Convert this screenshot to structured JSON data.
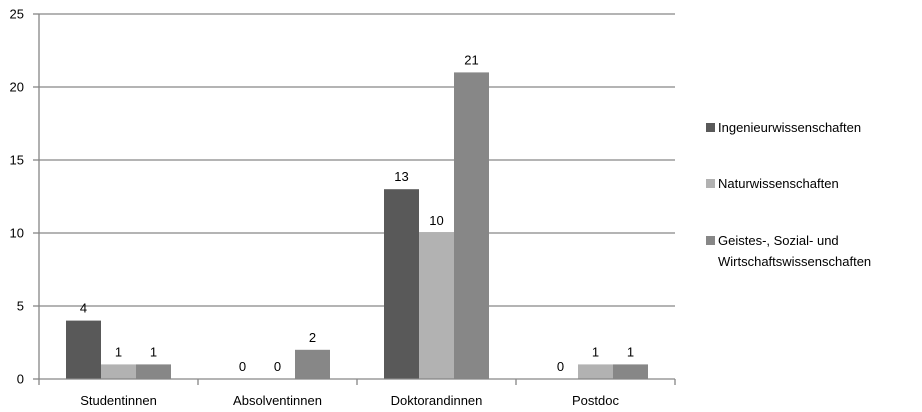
{
  "chart_data": {
    "type": "bar",
    "categories": [
      "Studentinnen",
      "Absolventinnen",
      "Doktorandinnen",
      "Postdoc"
    ],
    "series": [
      {
        "name": "Ingenieurwissenschaften",
        "values": [
          4,
          0,
          13,
          0
        ],
        "color": "#595959"
      },
      {
        "name": "Naturwissenschaften",
        "values": [
          1,
          0,
          10,
          1
        ],
        "color": "#b2b2b2"
      },
      {
        "name": "Geistes-, Sozial- und Wirtschaftswissenschaften",
        "legend_lines": [
          "Geistes-, Sozial- und",
          "Wirtschaftswissenschaften"
        ],
        "values": [
          1,
          2,
          21,
          1
        ],
        "color": "#878787"
      }
    ],
    "ylim": [
      0,
      25
    ],
    "yticks": [
      0,
      5,
      10,
      15,
      20,
      25
    ],
    "grid": true,
    "legend_position": "right",
    "data_labels": true
  }
}
